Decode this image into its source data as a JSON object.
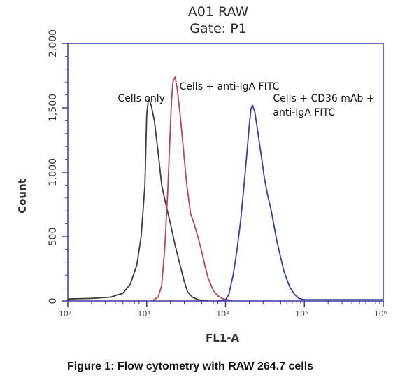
{
  "chart_data": {
    "type": "line",
    "title": "A01 RAW",
    "subtitle": "Gate: P1",
    "xlabel": "FL1-A",
    "ylabel": "Count",
    "x_scale": "log",
    "xlim": [
      100,
      1000000
    ],
    "ylim": [
      0,
      2000
    ],
    "x_ticks": [
      100,
      1000,
      10000,
      100000,
      1000000
    ],
    "x_tick_labels": [
      "10²",
      "10³",
      "10⁴",
      "10⁵",
      "10⁶"
    ],
    "y_ticks": [
      0,
      500,
      1000,
      1500,
      2000
    ],
    "y_tick_labels": [
      "0",
      "500",
      "1,000",
      "1,500",
      "2,000"
    ],
    "grid": false,
    "legend": "none",
    "series": [
      {
        "color": "#3d3d3d",
        "x": [
          100,
          200,
          350,
          500,
          620,
          750,
          850,
          950,
          1000,
          1050,
          1100,
          1150,
          1250,
          1400,
          1550,
          1750,
          2000,
          2300,
          2600,
          3000,
          3300,
          3800,
          4500,
          6000
        ],
        "y": [
          15,
          20,
          30,
          60,
          130,
          280,
          500,
          900,
          1450,
          1560,
          1550,
          1510,
          1400,
          1150,
          900,
          750,
          600,
          430,
          300,
          150,
          70,
          30,
          10,
          0
        ]
      },
      {
        "color": "#c0454c",
        "x": [
          1200,
          1400,
          1550,
          1700,
          1850,
          1950,
          2050,
          2150,
          2300,
          2450,
          2650,
          2900,
          3200,
          3600,
          4000,
          4500,
          5000,
          5500,
          6000,
          7000,
          8000,
          9000,
          10000,
          12000
        ],
        "y": [
          5,
          30,
          120,
          420,
          860,
          1200,
          1520,
          1700,
          1740,
          1640,
          1450,
          1200,
          920,
          680,
          600,
          490,
          380,
          270,
          180,
          80,
          40,
          20,
          10,
          5
        ]
      },
      {
        "color": "#3a3fa0",
        "x": [
          8000,
          10000,
          11000,
          12500,
          14000,
          15500,
          17000,
          18500,
          20000,
          21000,
          22000,
          23500,
          25000,
          27000,
          29000,
          31000,
          34000,
          38000,
          45000,
          55000,
          65000,
          75000,
          85000,
          100000,
          1000000
        ],
        "y": [
          0,
          10,
          50,
          200,
          400,
          620,
          870,
          1120,
          1360,
          1490,
          1520,
          1470,
          1360,
          1220,
          1090,
          960,
          830,
          700,
          460,
          230,
          110,
          50,
          20,
          10,
          10
        ]
      }
    ],
    "annotations": [
      {
        "lines": [
          "Cells only"
        ],
        "x": 430,
        "y": 1550
      },
      {
        "lines": [
          "Cells + anti-IgA FITC"
        ],
        "x": 2600,
        "y": 1640
      },
      {
        "lines": [
          "Cells + CD36 mAb +",
          "anti-IgA FITC"
        ],
        "x": 40000,
        "y": 1550
      }
    ],
    "colors": {
      "frame": "#3b3b9a",
      "ticks": "#3b3b9a"
    }
  },
  "caption": "Figure 1: Flow cytometry with RAW 264.7 cells"
}
